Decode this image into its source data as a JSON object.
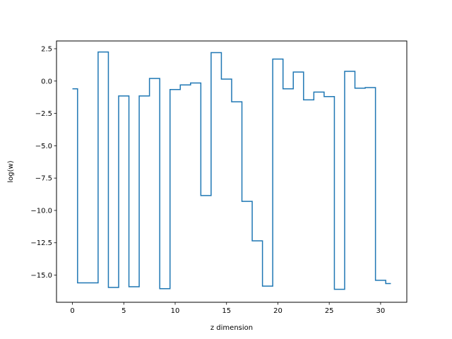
{
  "chart_data": {
    "type": "line",
    "drawstyle": "steps-mid",
    "title": "",
    "xlabel": "z dimension",
    "ylabel": "log(w)",
    "xlim": [
      -1.55,
      32.55
    ],
    "ylim": [
      -17.1,
      3.1
    ],
    "grid": false,
    "legend": "none",
    "x_ticks": [
      0,
      5,
      10,
      15,
      20,
      25,
      30
    ],
    "x_tick_labels": [
      "0",
      "5",
      "10",
      "15",
      "20",
      "25",
      "30"
    ],
    "y_ticks": [
      2.5,
      0,
      -2.5,
      -5,
      -7.5,
      -10,
      -12.5,
      -15
    ],
    "y_tick_labels": [
      "2.5",
      "0.0",
      "−2.5",
      "−5.0",
      "−7.5",
      "−10.0",
      "−12.5",
      "−15.0"
    ],
    "series": [
      {
        "color": "#1f77b4",
        "x": [
          0,
          1,
          2,
          3,
          4,
          5,
          6,
          7,
          8,
          9,
          10,
          11,
          12,
          13,
          14,
          15,
          16,
          17,
          18,
          19,
          20,
          21,
          22,
          23,
          24,
          25,
          26,
          27,
          28,
          29,
          30,
          31
        ],
        "values": [
          -0.6,
          -15.6,
          -15.6,
          2.25,
          -15.95,
          -1.15,
          -15.9,
          -1.15,
          0.2,
          -16.05,
          -0.65,
          -0.3,
          -0.15,
          -8.85,
          2.2,
          0.15,
          -1.6,
          -9.3,
          -12.35,
          -15.85,
          1.7,
          -0.6,
          0.7,
          -1.45,
          -0.85,
          -1.2,
          -16.1,
          0.75,
          -0.55,
          -0.5,
          -15.4,
          -15.65
        ]
      }
    ]
  }
}
